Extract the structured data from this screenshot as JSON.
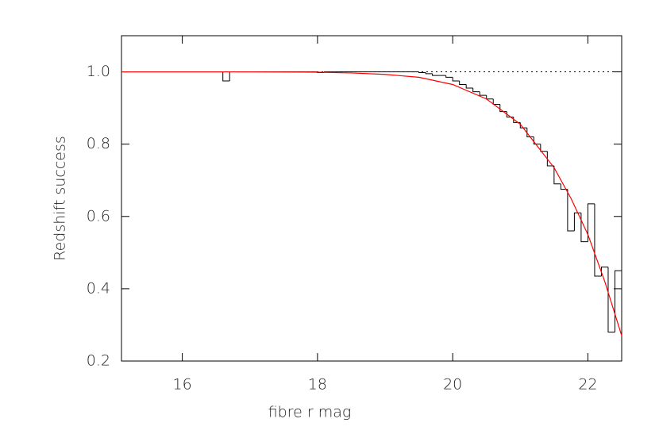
{
  "chart_data": {
    "type": "histogram",
    "xlabel": "fibre r mag",
    "ylabel": "Redshift success",
    "bins": [
      15.1,
      15.2,
      15.3,
      15.4,
      15.5,
      15.6,
      15.7,
      15.8,
      15.9,
      16.0,
      16.1,
      16.2,
      16.3,
      16.4,
      16.5,
      16.6,
      16.7,
      16.8,
      16.9,
      17.0,
      17.1,
      17.2,
      17.3,
      17.4,
      17.5,
      17.6,
      17.7,
      17.8,
      17.9,
      18.0,
      18.1,
      18.2,
      18.3,
      18.4,
      18.5,
      18.6,
      18.7,
      18.8,
      18.9,
      19.0,
      19.1,
      19.2,
      19.3,
      19.4,
      19.5,
      19.6,
      19.7,
      19.8,
      19.9,
      20.0,
      20.1,
      20.2,
      20.3,
      20.4,
      20.5,
      20.6,
      20.7,
      20.8,
      20.9,
      21.0,
      21.1,
      21.2,
      21.3,
      21.4,
      21.5,
      21.6,
      21.7,
      21.8,
      21.9,
      22.0,
      22.1,
      22.2,
      22.3,
      22.4,
      22.5
    ],
    "values": [
      1,
      1,
      1,
      1,
      1,
      1,
      1,
      1,
      1,
      1,
      1,
      1,
      1,
      1,
      1,
      0.975,
      1,
      1,
      1,
      1,
      1,
      1,
      1,
      1,
      1,
      1,
      1,
      1,
      1,
      0.998,
      1,
      1,
      1,
      1,
      1,
      1,
      1,
      1,
      1,
      1,
      1,
      1,
      1,
      1,
      0.998,
      0.995,
      0.99,
      0.99,
      0.985,
      0.975,
      0.965,
      0.955,
      0.945,
      0.935,
      0.925,
      0.91,
      0.89,
      0.875,
      0.86,
      0.845,
      0.82,
      0.8,
      0.78,
      0.74,
      0.69,
      0.675,
      0.56,
      0.61,
      0.53,
      0.635,
      0.435,
      0.46,
      0.28,
      0.45
    ],
    "color": "#000000",
    "fit": {
      "color": "#ff0000",
      "x": [
        15.1,
        16,
        17,
        18,
        18.5,
        19,
        19.5,
        20,
        20.5,
        21,
        21.5,
        21.75,
        22,
        22.25,
        22.5
      ],
      "y": [
        1,
        1,
        1,
        0.999,
        0.997,
        0.993,
        0.985,
        0.965,
        0.925,
        0.855,
        0.735,
        0.65,
        0.55,
        0.42,
        0.27
      ]
    },
    "reference_line": 1,
    "xlim": [
      15.1,
      22.5
    ],
    "xticks": [
      16,
      18,
      20,
      22
    ],
    "ylim": [
      0.2,
      1.1
    ],
    "yticks": [
      0.2,
      0.4,
      0.6,
      0.8,
      {
        "value": 1,
        "label": "1.0"
      }
    ]
  }
}
